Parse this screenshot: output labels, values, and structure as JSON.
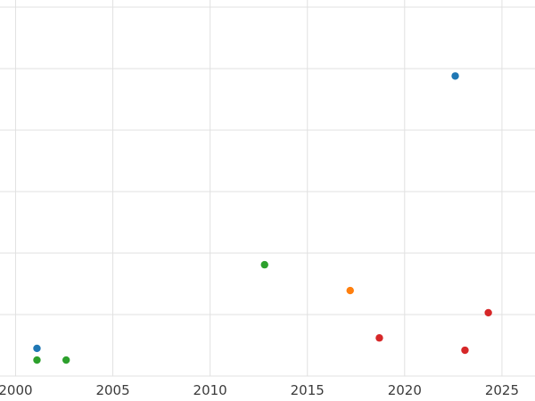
{
  "chart_data": {
    "type": "scatter",
    "title": "",
    "xlabel": "",
    "ylabel": "",
    "xlim": [
      1999.2,
      2026.7
    ],
    "ylim": [
      0,
      6
    ],
    "x_ticks": [
      2000,
      2005,
      2010,
      2015,
      2020,
      2025
    ],
    "x_tick_labels": [
      "2000",
      "2005",
      "2010",
      "2015",
      "2020",
      "2025"
    ],
    "y_gridlines": [
      0,
      1,
      2,
      3,
      4,
      5,
      6
    ],
    "grid": true,
    "legend_position": "none",
    "background_color": "#ffffff",
    "gridline_color": "#e1e1e1",
    "tick_label_color": "#3b3b3b",
    "tick_font_size": 15,
    "marker_radius": 4.2,
    "series": [
      {
        "name": "blue",
        "color": "#1f77b4",
        "points": [
          {
            "x": 2001.1,
            "y": 0.45
          },
          {
            "x": 2022.6,
            "y": 4.88
          }
        ]
      },
      {
        "name": "green",
        "color": "#2ca02c",
        "points": [
          {
            "x": 2001.1,
            "y": 0.26
          },
          {
            "x": 2002.6,
            "y": 0.26
          },
          {
            "x": 2012.8,
            "y": 1.81
          }
        ]
      },
      {
        "name": "orange",
        "color": "#ff7f0e",
        "points": [
          {
            "x": 2017.2,
            "y": 1.39
          }
        ]
      },
      {
        "name": "red",
        "color": "#d62728",
        "points": [
          {
            "x": 2018.7,
            "y": 0.62
          },
          {
            "x": 2023.1,
            "y": 0.42
          },
          {
            "x": 2024.3,
            "y": 1.03
          }
        ]
      }
    ]
  }
}
